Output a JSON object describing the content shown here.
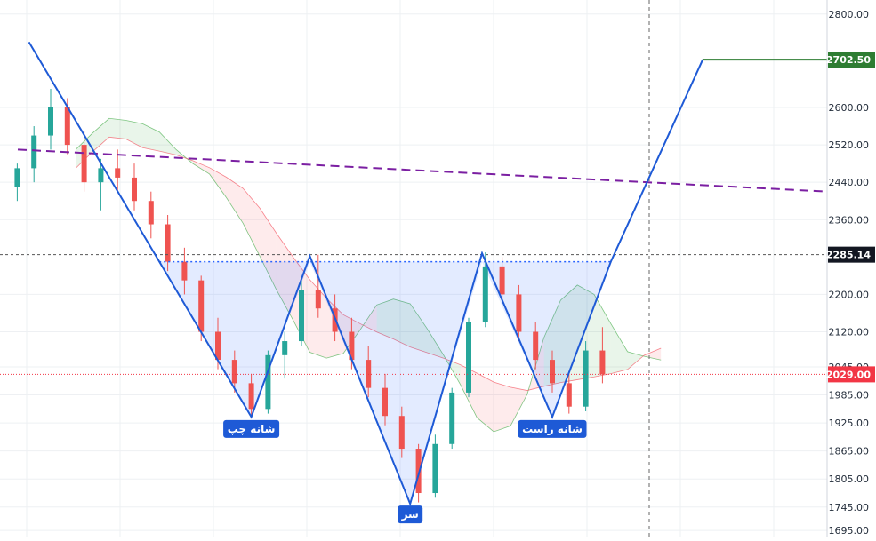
{
  "chart_data": {
    "type": "candlestick",
    "price_axis": {
      "ticks": [
        "2800.00",
        "2600.00",
        "2520.00",
        "2440.00",
        "2360.00",
        "2200.00",
        "2120.00",
        "2045.00",
        "1985.00",
        "1925.00",
        "1865.00",
        "1805.00",
        "1745.00",
        "1695.00"
      ],
      "range": [
        1680,
        2830
      ]
    },
    "price_badges": [
      {
        "value": "2702.50",
        "price": 2702.5,
        "color": "#2e7d32"
      },
      {
        "value": "2285.14",
        "price": 2285.14,
        "color": "#131722"
      },
      {
        "value": "2029.00",
        "price": 2029.0,
        "color": "#f23645"
      }
    ],
    "pattern_labels": [
      {
        "text": "شانه چپ",
        "price": 1935,
        "bar": 14.5
      },
      {
        "text": "سر",
        "price": 1752,
        "bar": 24
      },
      {
        "text": "شانه راست",
        "price": 1935,
        "bar": 32.5
      }
    ],
    "neckline_price": 2270,
    "target_price": 2702.5,
    "trendline": {
      "start_price": 2510,
      "end_price": 2420
    },
    "pattern_path": [
      {
        "bar": 1.2,
        "price": 2740
      },
      {
        "bar": 9,
        "price": 2270
      },
      {
        "bar": 14.5,
        "price": 1938
      },
      {
        "bar": 18,
        "price": 2282
      },
      {
        "bar": 24,
        "price": 1752
      },
      {
        "bar": 28.3,
        "price": 2288
      },
      {
        "bar": 32.5,
        "price": 1938
      },
      {
        "bar": 36,
        "price": 2270
      },
      {
        "bar": 41.5,
        "price": 2702.5
      }
    ],
    "candles": [
      [
        2430,
        2480,
        2400,
        2470
      ],
      [
        2470,
        2560,
        2440,
        2540
      ],
      [
        2540,
        2640,
        2510,
        2600
      ],
      [
        2600,
        2620,
        2500,
        2520
      ],
      [
        2520,
        2550,
        2420,
        2440
      ],
      [
        2440,
        2490,
        2380,
        2470
      ],
      [
        2470,
        2510,
        2420,
        2450
      ],
      [
        2450,
        2480,
        2380,
        2400
      ],
      [
        2400,
        2420,
        2320,
        2350
      ],
      [
        2350,
        2370,
        2250,
        2270
      ],
      [
        2270,
        2300,
        2200,
        2230
      ],
      [
        2230,
        2240,
        2100,
        2120
      ],
      [
        2120,
        2150,
        2040,
        2060
      ],
      [
        2060,
        2080,
        1990,
        2010
      ],
      [
        2010,
        2030,
        1940,
        1955
      ],
      [
        1955,
        2080,
        1945,
        2070
      ],
      [
        2070,
        2120,
        2020,
        2100
      ],
      [
        2100,
        2230,
        2090,
        2210
      ],
      [
        2210,
        2285,
        2150,
        2170
      ],
      [
        2170,
        2200,
        2100,
        2120
      ],
      [
        2120,
        2150,
        2040,
        2060
      ],
      [
        2060,
        2090,
        1980,
        2000
      ],
      [
        2000,
        2030,
        1920,
        1940
      ],
      [
        1940,
        1960,
        1850,
        1870
      ],
      [
        1870,
        1880,
        1755,
        1775
      ],
      [
        1775,
        1900,
        1765,
        1880
      ],
      [
        1880,
        2000,
        1870,
        1990
      ],
      [
        1990,
        2150,
        1980,
        2140
      ],
      [
        2140,
        2290,
        2130,
        2260
      ],
      [
        2260,
        2280,
        2180,
        2200
      ],
      [
        2200,
        2220,
        2100,
        2120
      ],
      [
        2120,
        2140,
        2040,
        2060
      ],
      [
        2060,
        2080,
        1990,
        2010
      ],
      [
        2010,
        2030,
        1945,
        1960
      ],
      [
        1960,
        2100,
        1950,
        2080
      ],
      [
        2080,
        2130,
        2010,
        2029
      ]
    ]
  }
}
